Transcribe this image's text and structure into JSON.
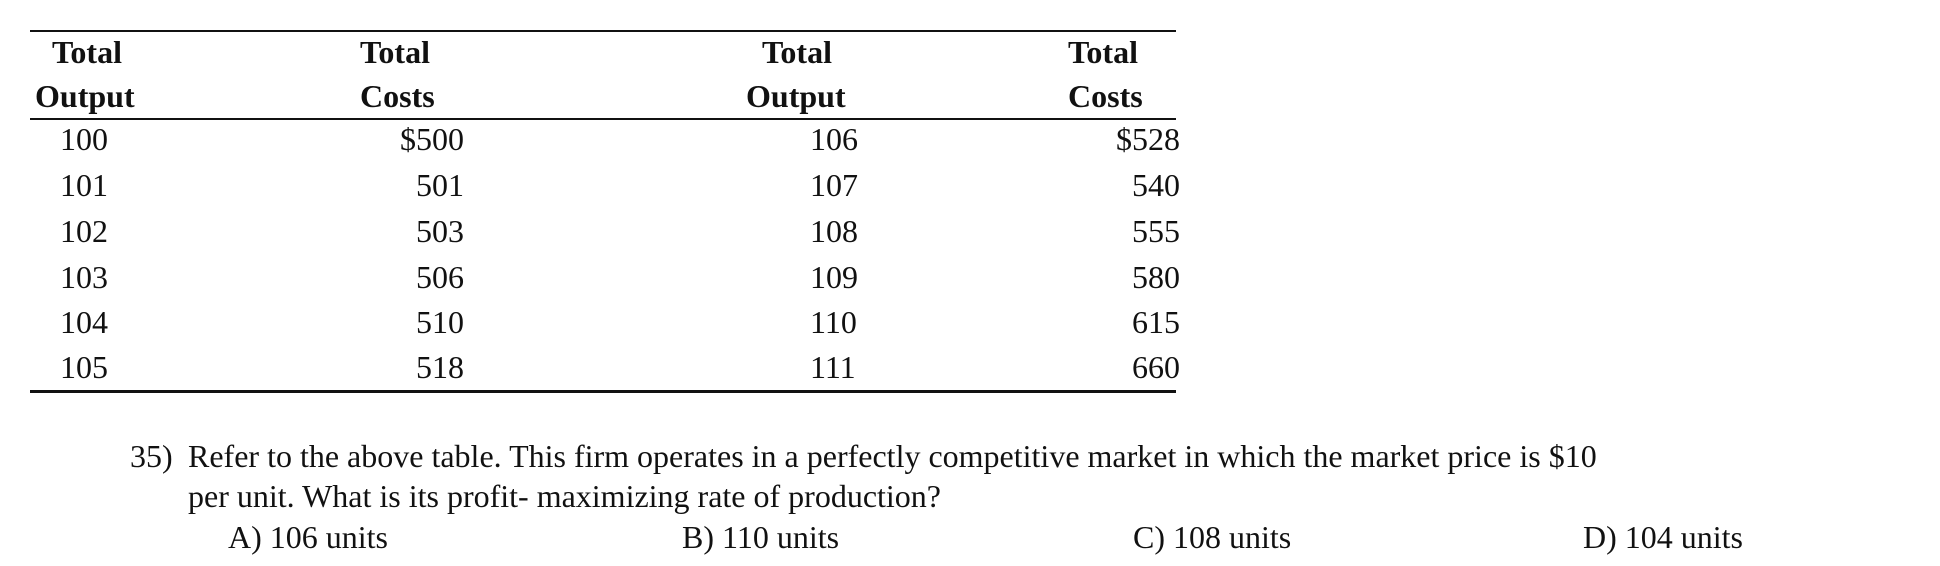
{
  "table": {
    "headers": [
      {
        "line1": "Total",
        "line2": "Output"
      },
      {
        "line1": "Total",
        "line2": "Costs"
      },
      {
        "line1": "Total",
        "line2": "Output"
      },
      {
        "line1": "Total",
        "line2": "Costs"
      }
    ],
    "rows": [
      [
        "100",
        "$500",
        "106",
        "$528"
      ],
      [
        "101",
        "501",
        "107",
        "540"
      ],
      [
        "102",
        "503",
        "108",
        "555"
      ],
      [
        "103",
        "506",
        "109",
        "580"
      ],
      [
        "104",
        "510",
        "110",
        "615"
      ],
      [
        "105",
        "518",
        "111",
        "660"
      ]
    ]
  },
  "question": {
    "number": "35)",
    "line1": "Refer to the above table. This firm operates in a perfectly competitive market in which the market price is $10",
    "line2": "per unit. What is its profit- maximizing rate of production?",
    "options": [
      {
        "letter": "A)",
        "text": "106 units"
      },
      {
        "letter": "B)",
        "text": "110 units"
      },
      {
        "letter": "C)",
        "text": "108 units"
      },
      {
        "letter": "D)",
        "text": "104 units"
      }
    ]
  }
}
